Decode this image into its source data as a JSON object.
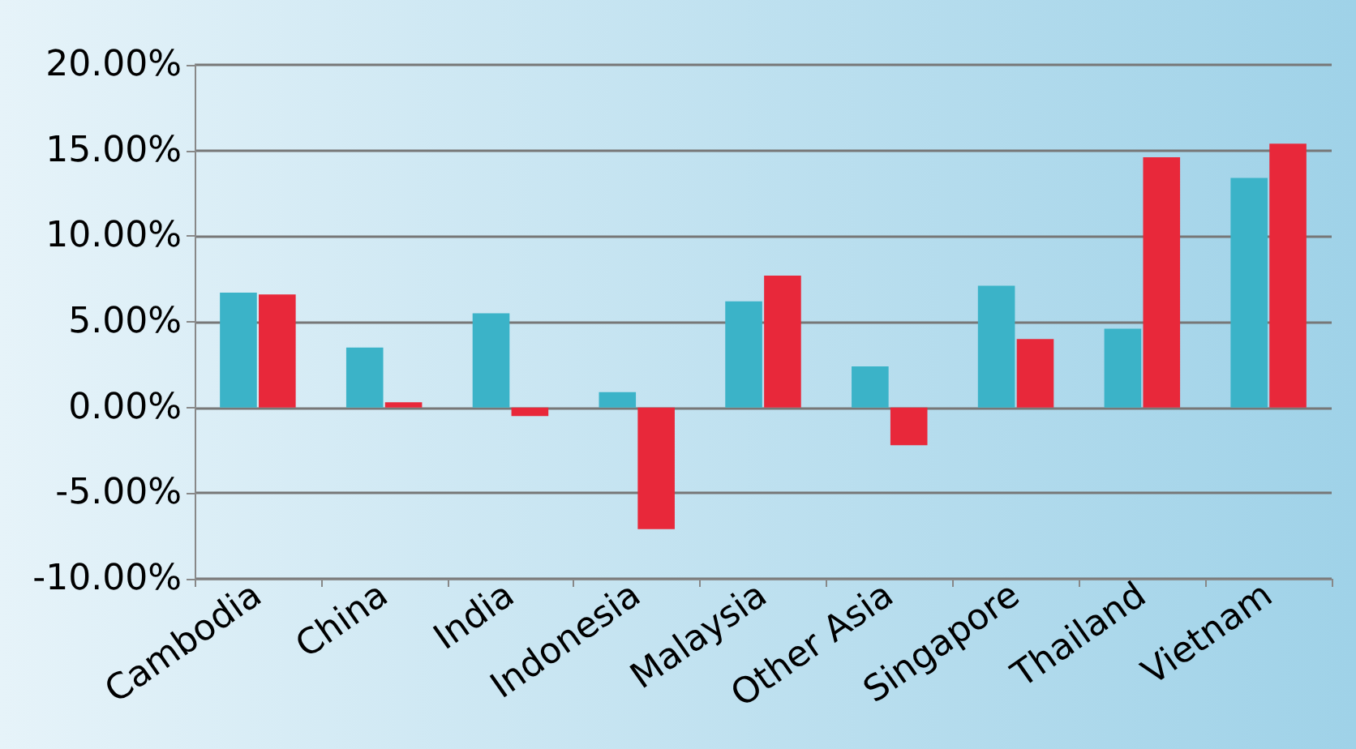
{
  "chart_data": {
    "type": "bar",
    "categories": [
      "Cambodia",
      "China",
      "India",
      "Indonesia",
      "Malaysia",
      "Other Asia",
      "Singapore",
      "Thailand",
      "Vietnam"
    ],
    "series": [
      {
        "color": "#3bb3c8",
        "values": [
          6.7,
          3.5,
          5.5,
          0.9,
          6.2,
          2.4,
          7.1,
          4.6,
          13.4
        ]
      },
      {
        "color": "#e8283a",
        "values": [
          6.6,
          0.3,
          -0.5,
          -7.1,
          7.7,
          -2.2,
          4.0,
          14.6,
          15.4
        ]
      }
    ],
    "ylim": [
      -10,
      20
    ],
    "yticks": [
      {
        "value": -10,
        "label": "-10.00%"
      },
      {
        "value": -5,
        "label": "-5.00%"
      },
      {
        "value": 0,
        "label": "0.00%"
      },
      {
        "value": 5,
        "label": "5.00%"
      },
      {
        "value": 10,
        "label": "10.00%"
      },
      {
        "value": 15,
        "label": "15.00%"
      },
      {
        "value": 20,
        "label": "20.00%"
      }
    ],
    "grid": "y"
  }
}
